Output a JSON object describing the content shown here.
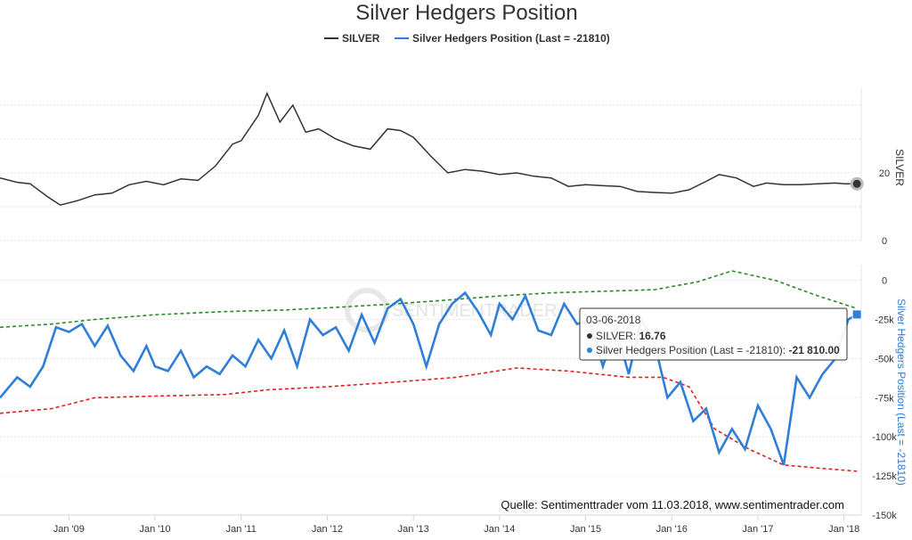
{
  "chart_data": {
    "type": "line",
    "title": "Silver Hedgers Position",
    "legend": [
      {
        "label": "SILVER",
        "color": "#333333"
      },
      {
        "label": "Silver Hedgers Position (Last = -21810)",
        "color": "#2f7ed8"
      }
    ],
    "x_ticks": [
      "Jan '09",
      "Jan '10",
      "Jan '11",
      "Jan '12",
      "Jan '13",
      "Jan '14",
      "Jan '15",
      "Jan '16",
      "Jan '17",
      "Jan '18"
    ],
    "x_range": [
      2008.2,
      2018.2
    ],
    "top_panel": {
      "axis_title": "SILVER",
      "ylim": [
        0,
        45
      ],
      "ticks": [
        "0",
        "20"
      ],
      "tick_values": [
        0,
        20
      ],
      "series": {
        "name": "SILVER",
        "color": "#333333",
        "x": [
          2008.2,
          2008.4,
          2008.55,
          2008.75,
          2008.9,
          2009.1,
          2009.3,
          2009.5,
          2009.7,
          2009.9,
          2010.1,
          2010.3,
          2010.5,
          2010.7,
          2010.9,
          2011.0,
          2011.2,
          2011.3,
          2011.45,
          2011.6,
          2011.75,
          2011.9,
          2012.1,
          2012.3,
          2012.5,
          2012.7,
          2012.85,
          2013.0,
          2013.2,
          2013.4,
          2013.6,
          2013.8,
          2014.0,
          2014.2,
          2014.4,
          2014.6,
          2014.8,
          2015.0,
          2015.2,
          2015.4,
          2015.6,
          2015.8,
          2016.0,
          2016.2,
          2016.4,
          2016.55,
          2016.75,
          2016.95,
          2017.1,
          2017.3,
          2017.5,
          2017.7,
          2017.9,
          2018.0,
          2018.15
        ],
        "values": [
          18.5,
          17.2,
          16.8,
          13.0,
          10.5,
          11.8,
          13.5,
          14.0,
          16.5,
          17.5,
          16.5,
          18.2,
          17.8,
          22.0,
          28.5,
          29.5,
          37.0,
          43.5,
          35.0,
          40.0,
          32.0,
          33.0,
          30.0,
          28.0,
          27.0,
          33.0,
          32.5,
          30.5,
          25.0,
          20.0,
          21.0,
          20.5,
          19.5,
          20.0,
          19.0,
          18.5,
          16.0,
          16.5,
          16.2,
          16.0,
          14.5,
          14.2,
          14.0,
          15.0,
          17.5,
          19.5,
          18.5,
          16.0,
          17.0,
          16.5,
          16.5,
          16.8,
          17.0,
          16.8,
          16.76
        ]
      }
    },
    "bottom_panel": {
      "axis_title": "Silver Hedgers Position (Last = -21810)",
      "ylim": [
        -150000,
        10000
      ],
      "ticks": [
        "0",
        "-25k",
        "-50k",
        "-75k",
        "-100k",
        "-125k",
        "-150k"
      ],
      "tick_values": [
        0,
        -25000,
        -50000,
        -75000,
        -100000,
        -125000,
        -150000
      ],
      "series": [
        {
          "name": "Silver Hedgers Position",
          "color": "#2f7ed8",
          "x": [
            2008.2,
            2008.4,
            2008.55,
            2008.7,
            2008.85,
            2009.0,
            2009.15,
            2009.3,
            2009.45,
            2009.6,
            2009.75,
            2009.9,
            2010.0,
            2010.15,
            2010.3,
            2010.45,
            2010.6,
            2010.75,
            2010.9,
            2011.05,
            2011.2,
            2011.35,
            2011.5,
            2011.65,
            2011.8,
            2011.95,
            2012.1,
            2012.25,
            2012.4,
            2012.55,
            2012.7,
            2012.85,
            2013.0,
            2013.15,
            2013.3,
            2013.45,
            2013.6,
            2013.75,
            2013.9,
            2014.0,
            2014.15,
            2014.3,
            2014.45,
            2014.6,
            2014.75,
            2014.9,
            2015.05,
            2015.2,
            2015.35,
            2015.5,
            2015.65,
            2015.8,
            2015.95,
            2016.1,
            2016.25,
            2016.4,
            2016.55,
            2016.7,
            2016.85,
            2017.0,
            2017.15,
            2017.3,
            2017.45,
            2017.6,
            2017.75,
            2017.9,
            2018.05,
            2018.15
          ],
          "values": [
            -75000,
            -62000,
            -68000,
            -55000,
            -30000,
            -33000,
            -28000,
            -42000,
            -29000,
            -48000,
            -58000,
            -42000,
            -55000,
            -58000,
            -45000,
            -62000,
            -55000,
            -60000,
            -48000,
            -55000,
            -38000,
            -50000,
            -32000,
            -55000,
            -25000,
            -35000,
            -30000,
            -45000,
            -22000,
            -40000,
            -18000,
            -12000,
            -28000,
            -55000,
            -28000,
            -15000,
            -8000,
            -20000,
            -35000,
            -15000,
            -25000,
            -10000,
            -32000,
            -35000,
            -15000,
            -28000,
            -25000,
            -55000,
            -30000,
            -60000,
            -25000,
            -40000,
            -75000,
            -65000,
            -90000,
            -82000,
            -110000,
            -95000,
            -108000,
            -80000,
            -95000,
            -118000,
            -62000,
            -75000,
            -60000,
            -50000,
            -25000,
            -21810
          ]
        },
        {
          "name": "Upper band",
          "color": "#2a8a2a",
          "x": [
            2008.2,
            2008.8,
            2009.3,
            2010.0,
            2010.8,
            2011.5,
            2012.2,
            2012.8,
            2013.3,
            2014.0,
            2014.6,
            2015.2,
            2015.8,
            2016.3,
            2016.7,
            2017.2,
            2017.7,
            2018.15
          ],
          "values": [
            -30000,
            -28000,
            -25000,
            -22000,
            -20000,
            -19000,
            -17000,
            -15000,
            -13000,
            -10000,
            -8000,
            -7000,
            -6000,
            -1000,
            6000,
            0,
            -10000,
            -18000
          ]
        },
        {
          "name": "Lower band",
          "color": "#e02020",
          "x": [
            2008.2,
            2008.8,
            2009.3,
            2010.0,
            2010.8,
            2011.3,
            2012.0,
            2012.8,
            2013.5,
            2014.2,
            2014.8,
            2015.5,
            2015.9,
            2016.2,
            2016.5,
            2016.9,
            2017.3,
            2017.7,
            2018.15
          ],
          "values": [
            -85000,
            -82000,
            -75000,
            -74000,
            -73000,
            -70000,
            -68000,
            -65000,
            -62000,
            -56000,
            -58000,
            -62000,
            -62000,
            -68000,
            -95000,
            -108000,
            -118000,
            -120000,
            -122000
          ]
        }
      ]
    },
    "tooltip": {
      "date": "03-06-2018",
      "silver_label": "SILVER: ",
      "silver_value": "16.76",
      "hedgers_label": "Silver Hedgers Position (Last = -21810): ",
      "hedgers_value": "-21 810.00"
    },
    "watermark": "SENTIMENTRADER",
    "source": "Quelle: Sentimenttrader vom 11.03.2018, www.sentimentrader.com"
  }
}
